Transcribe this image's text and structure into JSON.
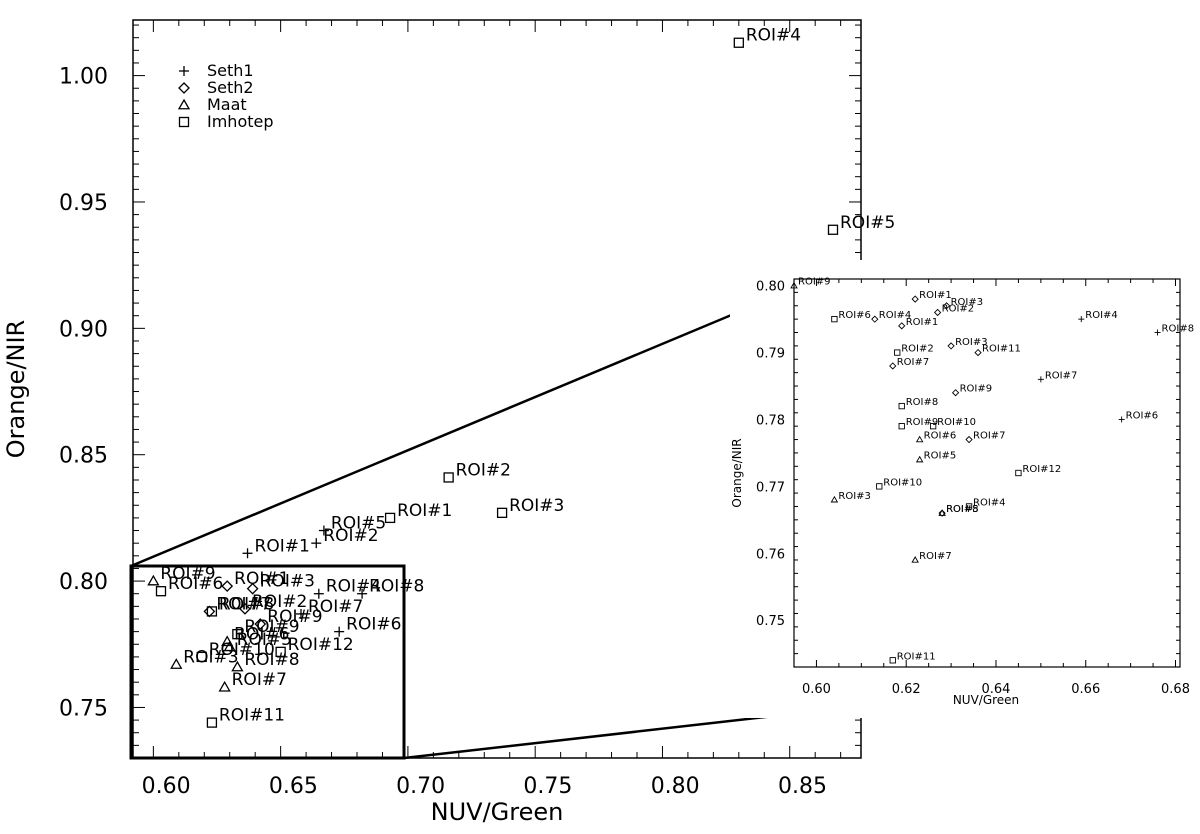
{
  "chart_data": [
    {
      "type": "scatter",
      "title": "",
      "xlabel": "NUV/Green",
      "ylabel": "Orange/NIR",
      "xlim": [
        0.587,
        0.873
      ],
      "ylim": [
        0.73,
        1.022
      ],
      "xticks": [
        "0.60",
        "0.65",
        "0.70",
        "0.75",
        "0.80",
        "0.85"
      ],
      "yticks": [
        "0.75",
        "0.80",
        "0.85",
        "0.90",
        "0.95",
        "1.00"
      ],
      "grid": false,
      "legend_position": "top-left",
      "zoom_box": {
        "xlim": [
          0.587,
          0.694
        ],
        "ylim": [
          0.73,
          0.809
        ]
      },
      "series": [
        {
          "name": "Seth1",
          "marker": "plus",
          "points": [
            {
              "x": 0.632,
              "y": 0.811,
              "label": "ROI#1"
            },
            {
              "x": 0.659,
              "y": 0.815,
              "label": "ROI#2"
            },
            {
              "x": 0.662,
              "y": 0.82,
              "label": "ROI#5"
            },
            {
              "x": 0.66,
              "y": 0.795,
              "label": "ROI#4"
            },
            {
              "x": 0.677,
              "y": 0.795,
              "label": "ROI#8"
            },
            {
              "x": 0.653,
              "y": 0.787,
              "label": "ROI#7"
            },
            {
              "x": 0.668,
              "y": 0.78,
              "label": "ROI#6"
            }
          ]
        },
        {
          "name": "Seth2",
          "marker": "diamond",
          "points": [
            {
              "x": 0.624,
              "y": 0.798,
              "label": "ROI#1"
            },
            {
              "x": 0.634,
              "y": 0.797,
              "label": "ROI#3"
            },
            {
              "x": 0.631,
              "y": 0.789,
              "label": "ROI#2"
            },
            {
              "x": 0.637,
              "y": 0.783,
              "label": "ROI#9"
            },
            {
              "x": 0.617,
              "y": 0.788,
              "label": "ROI#7"
            }
          ]
        },
        {
          "name": "Maat",
          "marker": "triangle",
          "points": [
            {
              "x": 0.595,
              "y": 0.8,
              "label": "ROI#9"
            },
            {
              "x": 0.604,
              "y": 0.767,
              "label": "ROI#3"
            },
            {
              "x": 0.624,
              "y": 0.776,
              "label": "ROI#6"
            },
            {
              "x": 0.625,
              "y": 0.774,
              "label": "ROI#5"
            },
            {
              "x": 0.628,
              "y": 0.766,
              "label": "ROI#8"
            },
            {
              "x": 0.623,
              "y": 0.758,
              "label": "ROI#7"
            }
          ]
        },
        {
          "name": "Imhotep",
          "marker": "square",
          "points": [
            {
              "x": 0.825,
              "y": 1.013,
              "label": "ROI#4"
            },
            {
              "x": 0.862,
              "y": 0.939,
              "label": "ROI#5"
            },
            {
              "x": 0.711,
              "y": 0.841,
              "label": "ROI#2"
            },
            {
              "x": 0.732,
              "y": 0.827,
              "label": "ROI#3"
            },
            {
              "x": 0.688,
              "y": 0.825,
              "label": "ROI#1"
            },
            {
              "x": 0.598,
              "y": 0.796,
              "label": "ROI#6"
            },
            {
              "x": 0.618,
              "y": 0.788,
              "label": "ROI#8"
            },
            {
              "x": 0.628,
              "y": 0.779,
              "label": "ROI#9"
            },
            {
              "x": 0.614,
              "y": 0.77,
              "label": "ROI#10"
            },
            {
              "x": 0.645,
              "y": 0.772,
              "label": "ROI#12"
            },
            {
              "x": 0.618,
              "y": 0.744,
              "label": "ROI#11"
            }
          ]
        }
      ]
    },
    {
      "type": "scatter",
      "title": "",
      "xlabel": "NUV/Green",
      "ylabel": "Orange/NIR",
      "xlim": [
        0.595,
        0.681
      ],
      "ylim": [
        0.743,
        0.801
      ],
      "xticks": [
        "0.60",
        "0.62",
        "0.64",
        "0.66",
        "0.68"
      ],
      "yticks": [
        "0.75",
        "0.76",
        "0.77",
        "0.78",
        "0.79",
        "0.80"
      ],
      "grid": false,
      "points": [
        {
          "x": 0.595,
          "y": 0.8,
          "label": "ROI#9",
          "marker": "triangle"
        },
        {
          "x": 0.622,
          "y": 0.798,
          "label": "ROI#1",
          "marker": "diamond"
        },
        {
          "x": 0.629,
          "y": 0.797,
          "label": "ROI#3",
          "marker": "diamond"
        },
        {
          "x": 0.627,
          "y": 0.796,
          "label": "ROI#2",
          "marker": "diamond"
        },
        {
          "x": 0.604,
          "y": 0.795,
          "label": "ROI#6",
          "marker": "square"
        },
        {
          "x": 0.613,
          "y": 0.795,
          "label": "ROI#4",
          "marker": "diamond"
        },
        {
          "x": 0.619,
          "y": 0.794,
          "label": "ROI#1",
          "marker": "diamond"
        },
        {
          "x": 0.659,
          "y": 0.795,
          "label": "ROI#4",
          "marker": "plus"
        },
        {
          "x": 0.676,
          "y": 0.793,
          "label": "ROI#8",
          "marker": "plus"
        },
        {
          "x": 0.618,
          "y": 0.79,
          "label": "ROI#2",
          "marker": "square"
        },
        {
          "x": 0.63,
          "y": 0.791,
          "label": "ROI#3",
          "marker": "diamond"
        },
        {
          "x": 0.636,
          "y": 0.79,
          "label": "ROI#11",
          "marker": "diamond"
        },
        {
          "x": 0.617,
          "y": 0.788,
          "label": "ROI#7",
          "marker": "diamond"
        },
        {
          "x": 0.65,
          "y": 0.786,
          "label": "ROI#7",
          "marker": "plus"
        },
        {
          "x": 0.619,
          "y": 0.782,
          "label": "ROI#8",
          "marker": "square"
        },
        {
          "x": 0.631,
          "y": 0.784,
          "label": "ROI#9",
          "marker": "diamond"
        },
        {
          "x": 0.619,
          "y": 0.779,
          "label": "ROI#9",
          "marker": "square"
        },
        {
          "x": 0.626,
          "y": 0.779,
          "label": "ROI#10",
          "marker": "square"
        },
        {
          "x": 0.668,
          "y": 0.78,
          "label": "ROI#6",
          "marker": "plus"
        },
        {
          "x": 0.623,
          "y": 0.777,
          "label": "ROI#6",
          "marker": "triangle"
        },
        {
          "x": 0.634,
          "y": 0.777,
          "label": "ROI#7",
          "marker": "diamond"
        },
        {
          "x": 0.623,
          "y": 0.774,
          "label": "ROI#5",
          "marker": "triangle"
        },
        {
          "x": 0.614,
          "y": 0.77,
          "label": "ROI#10",
          "marker": "square"
        },
        {
          "x": 0.645,
          "y": 0.772,
          "label": "ROI#12",
          "marker": "square"
        },
        {
          "x": 0.604,
          "y": 0.768,
          "label": "ROI#3",
          "marker": "triangle"
        },
        {
          "x": 0.628,
          "y": 0.766,
          "label": "ROI#8",
          "marker": "triangle"
        },
        {
          "x": 0.628,
          "y": 0.766,
          "label": "ROI#5",
          "marker": "diamond"
        },
        {
          "x": 0.634,
          "y": 0.767,
          "label": "ROI#4",
          "marker": "square"
        },
        {
          "x": 0.622,
          "y": 0.759,
          "label": "ROI#7",
          "marker": "triangle"
        },
        {
          "x": 0.617,
          "y": 0.744,
          "label": "ROI#11",
          "marker": "square"
        }
      ]
    }
  ]
}
